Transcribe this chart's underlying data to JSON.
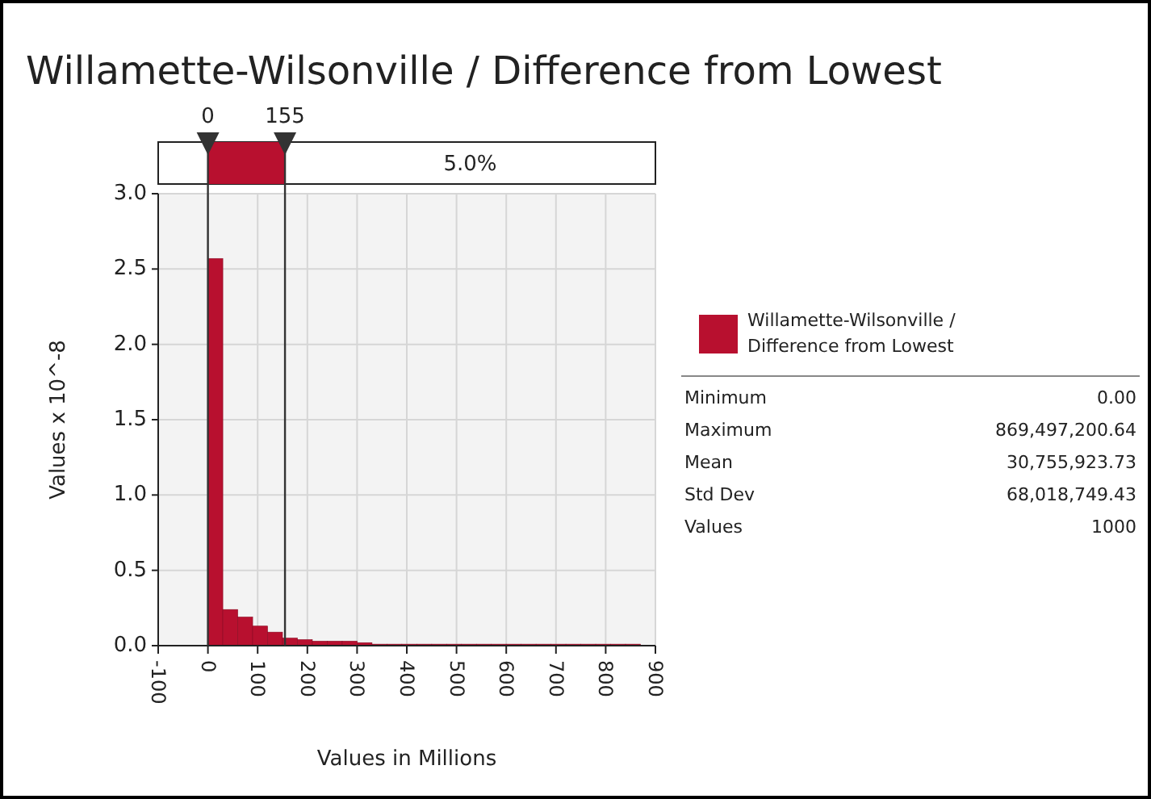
{
  "chart_data": {
    "type": "histogram",
    "title": "Willamette-Wilsonville / Difference from Lowest",
    "xlabel": "Values in Millions",
    "ylabel": "Values x 10^-8",
    "bins": [
      0,
      30,
      60,
      90,
      120,
      150,
      180,
      210,
      240,
      270,
      300,
      330,
      360,
      390,
      420,
      450,
      480,
      510,
      540,
      570,
      600,
      630,
      660,
      690,
      720,
      750,
      780,
      810,
      840,
      870
    ],
    "series": [
      {
        "name": "Willamette-Wilsonville / Difference from Lowest",
        "color": "#b8102f",
        "values": [
          2.57,
          0.24,
          0.19,
          0.13,
          0.09,
          0.05,
          0.04,
          0.03,
          0.03,
          0.03,
          0.02,
          0.01,
          0.01,
          0.01,
          0.01,
          0.01,
          0.01,
          0.01,
          0.01,
          0.01,
          0.01,
          0.01,
          0.01,
          0.01,
          0.01,
          0.01,
          0.01,
          0.01,
          0.01
        ]
      }
    ],
    "xlim": [
      -100,
      900
    ],
    "xticks": [
      -100,
      0,
      100,
      200,
      300,
      400,
      500,
      600,
      700,
      800,
      900
    ],
    "ylim": [
      0,
      3
    ],
    "yticks": [
      {
        "value": 0,
        "label": "0.0"
      },
      {
        "value": 0.5,
        "label": "0.5"
      },
      {
        "value": 1,
        "label": "1.0"
      },
      {
        "value": 1.5,
        "label": "1.5"
      },
      {
        "value": 2,
        "label": "2.0"
      },
      {
        "value": 2.5,
        "label": "2.5"
      },
      {
        "value": 3,
        "label": "3.0"
      }
    ],
    "ref_lines": [
      {
        "axis": "x",
        "value": 0,
        "label": "0"
      },
      {
        "axis": "x",
        "value": 155,
        "label": "155"
      }
    ],
    "annotations": [
      "5.0%",
      "Minimum",
      "0.00",
      "Maximum",
      "869,497,200.64",
      "Mean",
      "30,755,923.73",
      "Std Dev",
      "68,018,749.43",
      "Values",
      "1000"
    ],
    "grid": true,
    "legend": "right"
  }
}
